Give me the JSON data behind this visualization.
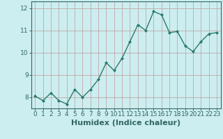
{
  "x": [
    0,
    1,
    2,
    3,
    4,
    5,
    6,
    7,
    8,
    9,
    10,
    11,
    12,
    13,
    14,
    15,
    16,
    17,
    18,
    19,
    20,
    21,
    22,
    23
  ],
  "y": [
    8.05,
    7.85,
    8.2,
    7.85,
    7.7,
    8.35,
    8.0,
    8.35,
    8.8,
    9.55,
    9.2,
    9.75,
    10.5,
    11.25,
    11.0,
    11.85,
    11.7,
    10.9,
    10.95,
    10.3,
    10.05,
    10.5,
    10.85,
    10.9
  ],
  "xlabel": "Humidex (Indice chaleur)",
  "ylim": [
    7.5,
    12.3
  ],
  "xlim": [
    -0.5,
    23.5
  ],
  "yticks": [
    8,
    9,
    10,
    11,
    12
  ],
  "xticks": [
    0,
    1,
    2,
    3,
    4,
    5,
    6,
    7,
    8,
    9,
    10,
    11,
    12,
    13,
    14,
    15,
    16,
    17,
    18,
    19,
    20,
    21,
    22,
    23
  ],
  "line_color": "#2a7a6a",
  "marker": "D",
  "marker_size": 2.0,
  "bg_color": "#cceef0",
  "grid_color": "#c0a8a8",
  "xlabel_fontsize": 8,
  "tick_fontsize": 6.5,
  "spine_color": "#336666",
  "line_width": 1.0
}
